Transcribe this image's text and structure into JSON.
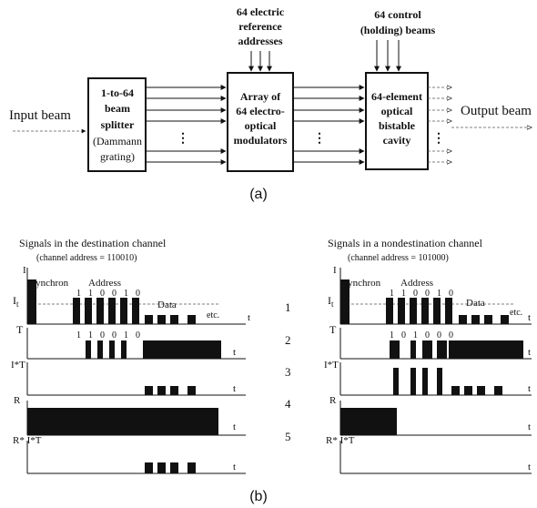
{
  "top_diagram": {
    "input_label": "Input beam",
    "output_label": "Output beam",
    "splitter_lines": [
      "1-to-64",
      "beam",
      "splitter",
      "(Dammann",
      "grating)"
    ],
    "modulator_lines": [
      "Array of",
      "64 electro-",
      "optical",
      "modulators"
    ],
    "cavity_lines": [
      "64-element",
      "optical",
      "bistable",
      "cavity"
    ],
    "ref_address_lines": [
      "64 electric",
      "reference",
      "addresses"
    ],
    "control_beam_lines": [
      "64 control",
      "(holding) beams"
    ],
    "caption": "(a)"
  },
  "bottom_diagram": {
    "caption": "(b)",
    "row_numbers": [
      "1",
      "2",
      "3",
      "4",
      "5"
    ],
    "left_panel": {
      "title": "Signals in the destination channel",
      "subtitle": "(channel address = 110010)",
      "address_bits": [
        "1",
        "1",
        "0",
        "0",
        "1",
        "0"
      ],
      "inverted_bits": [
        "1",
        "1",
        "0",
        "0",
        "1",
        "0"
      ],
      "reference_pattern": [
        1,
        1,
        0,
        0,
        1,
        0
      ],
      "destination_match": true
    },
    "right_panel": {
      "title": "Signals in a nondestination channel",
      "subtitle": "(channel address = 101000)",
      "address_bits": [
        "1",
        "1",
        "0",
        "0",
        "1",
        "0"
      ],
      "inverted_bits": [
        "1",
        "0",
        "1",
        "0",
        "0",
        "0"
      ],
      "reference_pattern": [
        1,
        0,
        1,
        0,
        0,
        0
      ],
      "destination_match": false
    },
    "labels": {
      "synchron": "Synchron",
      "address": "Address",
      "data": "Data",
      "etc": "etc.",
      "t": "t",
      "I": "I",
      "It_main": "I",
      "It_sub": "t",
      "T": "T",
      "IT": "I*T",
      "R": "R",
      "RIT": "R* I*T"
    }
  }
}
